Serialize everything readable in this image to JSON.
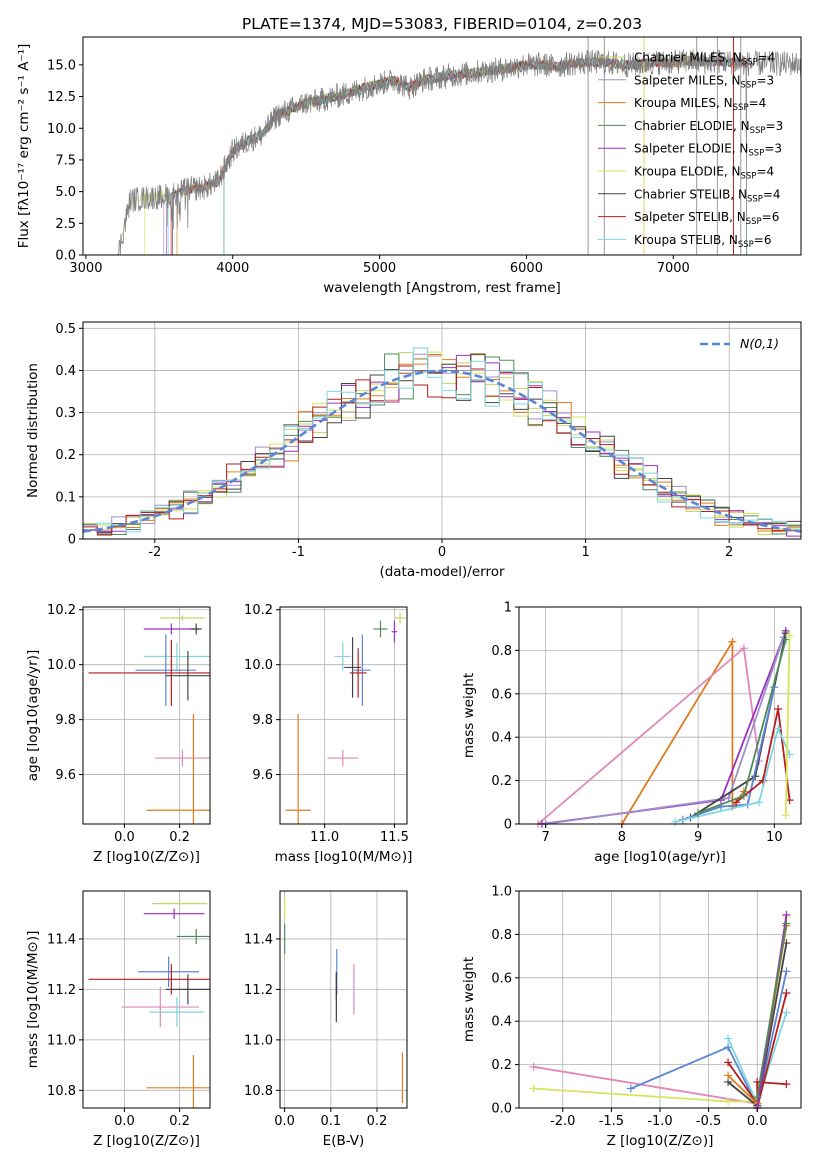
{
  "figure": {
    "title": "PLATE=1374, MJD=53083, FIBERID=0104, z=0.203"
  },
  "models": [
    {
      "key": "chabrier_miles",
      "label": "Chabrier MILES, N",
      "nssp": "4",
      "color": "#c8d46a"
    },
    {
      "key": "salpeter_miles",
      "label": "Salpeter MILES, N",
      "nssp": "3",
      "color": "#9d8fcd"
    },
    {
      "key": "kroupa_miles",
      "label": "Kroupa MILES, N",
      "nssp": "4",
      "color": "#e07c1f"
    },
    {
      "key": "chabrier_elodie",
      "label": "Chabrier ELODIE, N",
      "nssp": "3",
      "color": "#4f8a5b"
    },
    {
      "key": "salpeter_elodie",
      "label": "Salpeter ELODIE, N",
      "nssp": "3",
      "color": "#9b30c0"
    },
    {
      "key": "kroupa_elodie",
      "label": "Kroupa ELODIE, N",
      "nssp": "4",
      "color": "#d6e45a"
    },
    {
      "key": "chabrier_stelib",
      "label": "Chabrier STELIB, N",
      "nssp": "4",
      "color": "#444444"
    },
    {
      "key": "salpeter_stelib",
      "label": "Salpeter STELIB, N",
      "nssp": "6",
      "color": "#b81c1c"
    },
    {
      "key": "kroupa_stelib",
      "label": "Kroupa STELIB, N",
      "nssp": "6",
      "color": "#7fd6e0"
    }
  ],
  "extra_colors": {
    "blue": "#5b86d6",
    "pink": "#e088b8",
    "gray": "#777777"
  },
  "chart_data": [
    {
      "id": "spectrum",
      "type": "line",
      "xlabel": "wavelength [Angstrom, rest frame]",
      "ylabel": "Flux [fλ10⁻¹⁷ erg cm⁻² s⁻¹ A⁻¹]",
      "xlim": [
        2980,
        7870
      ],
      "ylim": [
        0,
        17.2
      ],
      "xticks": [
        3000,
        4000,
        5000,
        6000,
        7000
      ],
      "yticks": [
        0.0,
        2.5,
        5.0,
        7.5,
        10.0,
        12.5,
        15.0
      ],
      "continuum_x": [
        3220,
        3300,
        3400,
        3500,
        3600,
        3700,
        3800,
        3900,
        4000,
        4100,
        4200,
        4300,
        4400,
        4500,
        4600,
        4700,
        4800,
        4900,
        5000,
        5100,
        5200,
        5300,
        5400,
        5500,
        5600,
        5700,
        5800,
        5900,
        6000,
        6100,
        6200,
        6300,
        6400,
        6500,
        6600,
        6700,
        6800,
        6900,
        7000,
        7100,
        7200,
        7300,
        7400,
        7500
      ],
      "continuum_y": [
        0,
        4.3,
        4.5,
        4.6,
        4.8,
        5.2,
        5.3,
        5.8,
        8.2,
        9.0,
        9.5,
        11.0,
        11.5,
        12.0,
        12.2,
        12.5,
        12.8,
        13.2,
        13.5,
        13.8,
        13.2,
        13.8,
        14.0,
        14.2,
        14.3,
        14.5,
        14.6,
        14.8,
        15.0,
        15.0,
        14.9,
        15.1,
        15.2,
        15.2,
        15.1,
        15.0,
        15.1,
        15.2,
        15.2,
        15.3,
        15.2,
        15.3,
        15.2,
        15.1
      ],
      "gray_spikes": [
        6420,
        6530,
        6800,
        7160,
        7300,
        7460
      ],
      "model_starts": [
        3220,
        3530,
        3620,
        3940,
        3550,
        3400,
        3590,
        3580,
        3560
      ]
    },
    {
      "id": "residuals",
      "type": "histogram",
      "xlabel": "(data-model)/error",
      "ylabel": "Normed distribution",
      "xlim": [
        -2.5,
        2.5
      ],
      "ylim": [
        0,
        0.515
      ],
      "xticks": [
        -2,
        -1,
        0,
        1,
        2
      ],
      "yticks": [
        0.0,
        0.1,
        0.2,
        0.3,
        0.4,
        0.5
      ],
      "bin_width": 0.1,
      "gaussian_label": "N(0,1)"
    },
    {
      "id": "age_vs_Z",
      "type": "errorbar",
      "xlabel": "Z [log10(Z/Z⊙)]",
      "ylabel": "age  [log10(age/yr)]",
      "xlim": [
        -0.15,
        0.31
      ],
      "ylim": [
        9.42,
        10.21
      ],
      "xticks": [
        0.0,
        0.2
      ],
      "yticks": [
        9.6,
        9.8,
        10.0,
        10.2
      ],
      "points": [
        {
          "c": "chabrier_miles",
          "x": 0.21,
          "y": 10.17,
          "ex": 0.08,
          "ey": 0.01
        },
        {
          "c": "salpeter_elodie",
          "x": 0.17,
          "y": 10.13,
          "ex": 0.1,
          "ey": 0.02
        },
        {
          "c": "chabrier_stelib",
          "x": 0.26,
          "y": 10.13,
          "ex": 0.02,
          "ey": 0.02
        },
        {
          "c": "kroupa_stelib",
          "x": 0.19,
          "y": 10.03,
          "ex": 0.12,
          "ey": 0.05
        },
        {
          "c": "blue",
          "x": 0.15,
          "y": 9.98,
          "ex": 0.11,
          "ey": 0.13
        },
        {
          "c": "chabrier_stelib",
          "x": 0.23,
          "y": 9.96,
          "ex": 0.08,
          "ey": 0.09
        },
        {
          "c": "salpeter_stelib",
          "x": 0.17,
          "y": 9.97,
          "ex": 0.3,
          "ey": 0.12
        },
        {
          "c": "pink",
          "x": 0.21,
          "y": 9.66,
          "ex": 0.1,
          "ey": 0.03
        },
        {
          "c": "kroupa_miles",
          "x": 0.25,
          "y": 9.47,
          "ex": 0.17,
          "ey": 0.35
        }
      ]
    },
    {
      "id": "age_vs_mass",
      "type": "errorbar",
      "xlabel": "mass [log10(M/M⊙)]",
      "ylabel": "",
      "xlim": [
        10.68,
        11.59
      ],
      "ylim": [
        9.42,
        10.21
      ],
      "xticks": [
        11.0,
        11.5
      ],
      "yticks": [
        9.6,
        9.8,
        10.0,
        10.2
      ],
      "points": [
        {
          "c": "chabrier_miles",
          "x": 11.54,
          "y": 10.17,
          "ex": 0.04,
          "ey": 0.02
        },
        {
          "c": "salpeter_elodie",
          "x": 11.5,
          "y": 10.12,
          "ex": 0.02,
          "ey": 0.04
        },
        {
          "c": "chabrier_elodie",
          "x": 11.4,
          "y": 10.13,
          "ex": 0.05,
          "ey": 0.03
        },
        {
          "c": "kroupa_stelib",
          "x": 11.13,
          "y": 10.03,
          "ex": 0.06,
          "ey": 0.05
        },
        {
          "c": "blue",
          "x": 11.27,
          "y": 9.98,
          "ex": 0.06,
          "ey": 0.13
        },
        {
          "c": "chabrier_stelib",
          "x": 11.2,
          "y": 9.99,
          "ex": 0.06,
          "ey": 0.11
        },
        {
          "c": "salpeter_stelib",
          "x": 11.24,
          "y": 9.97,
          "ex": 0.06,
          "ey": 0.09
        },
        {
          "c": "pink",
          "x": 11.13,
          "y": 9.66,
          "ex": 0.11,
          "ey": 0.03
        },
        {
          "c": "kroupa_miles",
          "x": 10.81,
          "y": 9.47,
          "ex": 0.09,
          "ey": 0.35
        }
      ]
    },
    {
      "id": "weight_vs_age",
      "type": "line",
      "xlabel": "age  [log10(age/yr)]",
      "ylabel": "mass weight",
      "xlim": [
        6.65,
        10.35
      ],
      "ylim": [
        0,
        1.0
      ],
      "xticks": [
        7,
        8,
        9,
        10
      ],
      "yticks": [
        0.0,
        0.2,
        0.4,
        0.6,
        0.8,
        1.0
      ]
    },
    {
      "id": "mass_vs_Z",
      "type": "errorbar",
      "xlabel": "Z [log10(Z/Z⊙)]",
      "ylabel": "mass [log10(M/M⊙)]",
      "xlim": [
        -0.15,
        0.31
      ],
      "ylim": [
        10.73,
        11.59
      ],
      "xticks": [
        0.0,
        0.2
      ],
      "yticks": [
        10.8,
        11.0,
        11.2,
        11.4
      ],
      "points": [
        {
          "c": "chabrier_miles",
          "x": 0.2,
          "y": 11.54,
          "ex": 0.1,
          "ey": 0.01
        },
        {
          "c": "salpeter_elodie",
          "x": 0.18,
          "y": 11.5,
          "ex": 0.11,
          "ey": 0.02
        },
        {
          "c": "chabrier_elodie",
          "x": 0.26,
          "y": 11.41,
          "ex": 0.07,
          "ey": 0.03
        },
        {
          "c": "blue",
          "x": 0.16,
          "y": 11.27,
          "ex": 0.11,
          "ey": 0.06
        },
        {
          "c": "salpeter_stelib",
          "x": 0.17,
          "y": 11.24,
          "ex": 0.3,
          "ey": 0.06
        },
        {
          "c": "chabrier_stelib",
          "x": 0.23,
          "y": 11.2,
          "ex": 0.08,
          "ey": 0.06
        },
        {
          "c": "pink",
          "x": 0.13,
          "y": 11.13,
          "ex": 0.14,
          "ey": 0.08
        },
        {
          "c": "kroupa_stelib",
          "x": 0.19,
          "y": 11.11,
          "ex": 0.1,
          "ey": 0.06
        },
        {
          "c": "kroupa_miles",
          "x": 0.25,
          "y": 10.81,
          "ex": 0.17,
          "ey": 0.13
        }
      ]
    },
    {
      "id": "mass_vs_ebv",
      "type": "errorbar",
      "xlabel": "E(B-V)",
      "ylabel": "",
      "xlim": [
        -0.01,
        0.265
      ],
      "ylim": [
        10.73,
        11.59
      ],
      "xticks": [
        0.0,
        0.1,
        0.2
      ],
      "yticks": [
        10.8,
        11.0,
        11.2,
        11.4
      ],
      "points": [
        {
          "c": "kroupa_elodie",
          "x": 0.0,
          "y": 11.52,
          "ex": 0.0,
          "ey": 0.04
        },
        {
          "c": "chabrier_elodie",
          "x": 0.0,
          "y": 11.4,
          "ex": 0.0,
          "ey": 0.06
        },
        {
          "c": "blue",
          "x": 0.113,
          "y": 11.27,
          "ex": 0.0,
          "ey": 0.09
        },
        {
          "c": "salpeter_stelib",
          "x": 0.112,
          "y": 11.21,
          "ex": 0.0,
          "ey": 0.05
        },
        {
          "c": "chabrier_stelib",
          "x": 0.112,
          "y": 11.17,
          "ex": 0.0,
          "ey": 0.1
        },
        {
          "c": "pink",
          "x": 0.15,
          "y": 11.2,
          "ex": 0.0,
          "ey": 0.1
        },
        {
          "c": "kroupa_miles",
          "x": 0.255,
          "y": 10.85,
          "ex": 0.0,
          "ey": 0.1
        }
      ]
    },
    {
      "id": "weight_vs_Z",
      "type": "line",
      "xlabel": "Z [log10(Z/Z⊙)]",
      "ylabel": "mass weight",
      "xlim": [
        -2.45,
        0.45
      ],
      "ylim": [
        0,
        1.0
      ],
      "xticks": [
        -2.0,
        -1.5,
        -1.0,
        -0.5,
        0.0
      ],
      "yticks": [
        0.0,
        0.2,
        0.4,
        0.6,
        0.8,
        1.0
      ]
    }
  ]
}
